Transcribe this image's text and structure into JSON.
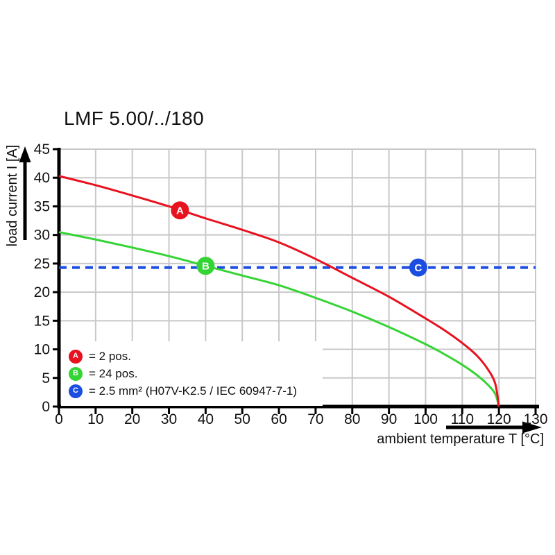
{
  "colors": {
    "grid": "#c8c8c8",
    "axis": "#000000",
    "text": "#111111",
    "background": "#ffffff"
  },
  "chart_data": {
    "type": "line",
    "title": "LMF 5.00/../180",
    "xlabel": "ambient temperature T [°C]",
    "ylabel": "load current I [A]",
    "xlim": [
      0,
      130
    ],
    "ylim": [
      0,
      45
    ],
    "xticks": [
      0,
      10,
      20,
      30,
      40,
      50,
      60,
      70,
      80,
      90,
      100,
      110,
      120,
      130
    ],
    "yticks": [
      0,
      5,
      10,
      15,
      20,
      25,
      30,
      35,
      40,
      45
    ],
    "grid": true,
    "legend_position": "inside-bottom-left",
    "series": [
      {
        "name": "A",
        "label": "= 2 pos.",
        "color": "#e8111e",
        "style": "solid",
        "points": [
          [
            0,
            40.3
          ],
          [
            10,
            38.7
          ],
          [
            20,
            36.9
          ],
          [
            30,
            35.0
          ],
          [
            40,
            32.9
          ],
          [
            50,
            30.9
          ],
          [
            60,
            28.7
          ],
          [
            70,
            25.8
          ],
          [
            80,
            22.5
          ],
          [
            90,
            19.2
          ],
          [
            100,
            15.4
          ],
          [
            105,
            13.4
          ],
          [
            110,
            11.1
          ],
          [
            114,
            8.9
          ],
          [
            117,
            6.5
          ],
          [
            119,
            4.0
          ],
          [
            120,
            0
          ]
        ],
        "marker": {
          "x": 33,
          "y": 34.3,
          "letter": "A"
        }
      },
      {
        "name": "B",
        "label": "= 24 pos.",
        "color": "#35d435",
        "style": "solid",
        "points": [
          [
            0,
            30.5
          ],
          [
            10,
            29.2
          ],
          [
            20,
            27.8
          ],
          [
            30,
            26.3
          ],
          [
            40,
            24.6
          ],
          [
            50,
            22.9
          ],
          [
            60,
            21.2
          ],
          [
            70,
            19.0
          ],
          [
            80,
            16.6
          ],
          [
            90,
            13.9
          ],
          [
            100,
            10.9
          ],
          [
            105,
            9.2
          ],
          [
            110,
            7.3
          ],
          [
            114,
            5.5
          ],
          [
            117,
            3.8
          ],
          [
            119,
            2.2
          ],
          [
            120,
            0
          ]
        ],
        "marker": {
          "x": 40,
          "y": 24.6,
          "letter": "B"
        }
      },
      {
        "name": "C",
        "label": "= 2.5 mm² (H07V-K2.5 / IEC 60947-7-1)",
        "color": "#1b4de0",
        "style": "dashed",
        "points": [
          [
            0,
            24.3
          ],
          [
            130,
            24.3
          ]
        ],
        "marker": {
          "x": 98,
          "y": 24.3,
          "letter": "C"
        }
      }
    ]
  }
}
